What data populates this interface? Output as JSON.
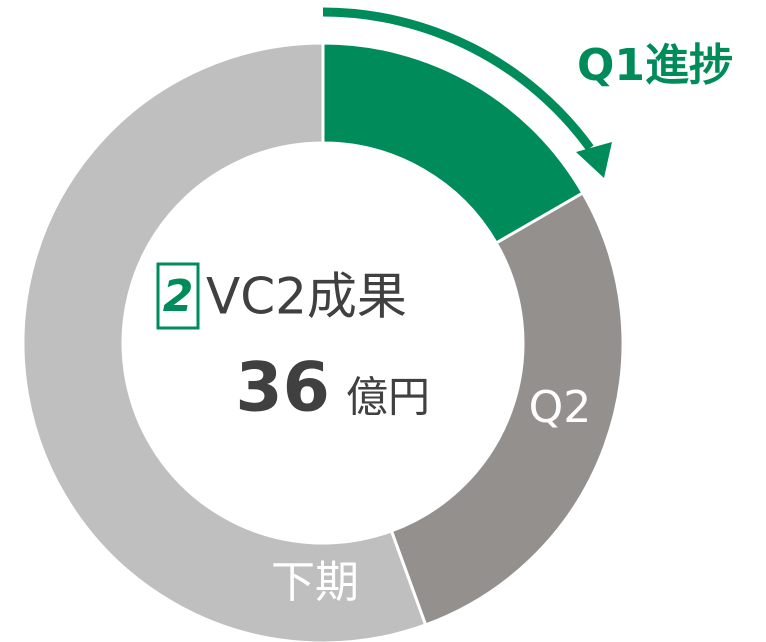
{
  "chart_data": {
    "type": "donut",
    "categories": [
      "Q1進捗",
      "Q2",
      "下期"
    ],
    "values": [
      6,
      10,
      20
    ],
    "colors": [
      "#008c5a",
      "#93908d",
      "#bfbfbf"
    ],
    "center": {
      "badge": "2",
      "title": "VC2成果",
      "value": 36,
      "unit": "億円"
    }
  }
}
